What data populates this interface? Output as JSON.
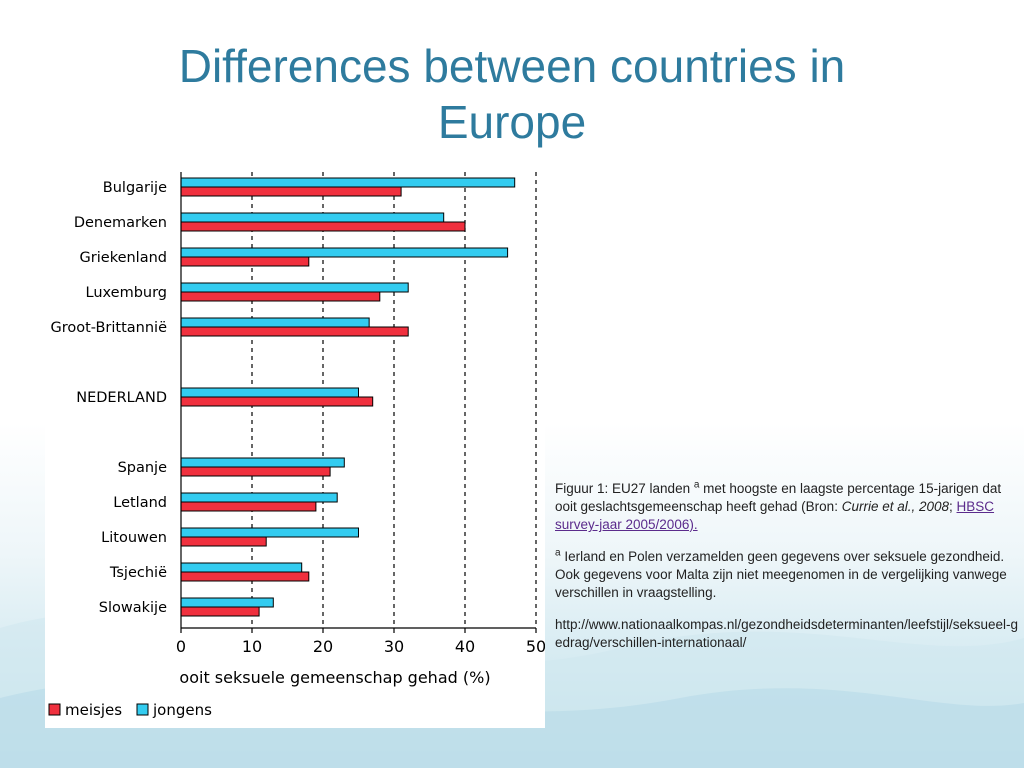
{
  "slide": {
    "title_line1": "Differences between countries in",
    "title_line2": "Europe"
  },
  "caption": {
    "figure_prefix": "Figuur 1: EU27 landen ",
    "sup_a": "a",
    "figure_text": " met hoogste en laagste percentage 15-jarigen dat ooit geslachtsgemeenschap heeft gehad (Bron: ",
    "citation_italic": "Currie et al., 2008",
    "sep": "; ",
    "link_text": "HBSC survey-jaar 2005/2006).",
    "note_sup": "a",
    "note_text": " Ierland en Polen verzamelden geen gegevens over seksuele gezondheid. Ook gegevens voor Malta zijn niet meegenomen in de vergelijking vanwege verschillen in vraagstelling.",
    "url": "http://www.nationaalkompas.nl/gezondheidsdeterminanten/leefstijl/seksueel-gedrag/verschillen-internationaal/"
  },
  "chart_data": {
    "type": "bar",
    "orientation": "horizontal",
    "categories": [
      "Bulgarije",
      "Denemarken",
      "Griekenland",
      "Luxemburg",
      "Groot-Brittannië",
      "NEDERLAND",
      "Spanje",
      "Letland",
      "Litouwen",
      "Tsjechië",
      "Slowakije"
    ],
    "series": [
      {
        "name": "jongens",
        "color": "#33ccf0",
        "values": [
          47,
          37,
          46,
          32,
          26.5,
          25,
          23,
          22,
          25,
          17,
          13
        ]
      },
      {
        "name": "meisjes",
        "color": "#f0303e",
        "values": [
          31,
          40,
          18,
          28,
          32,
          27,
          21,
          19,
          12,
          18,
          11
        ]
      }
    ],
    "xlabel": "ooit seksuele gemeenschap gehad (%)",
    "xlim": [
      0,
      50
    ],
    "xticks": [
      "0",
      "10",
      "20",
      "30",
      "40",
      "50"
    ],
    "grid": "dashed vertical at 10,20,30,40,50",
    "legend_position": "bottom",
    "legend_order": [
      "meisjes",
      "jongens"
    ]
  }
}
